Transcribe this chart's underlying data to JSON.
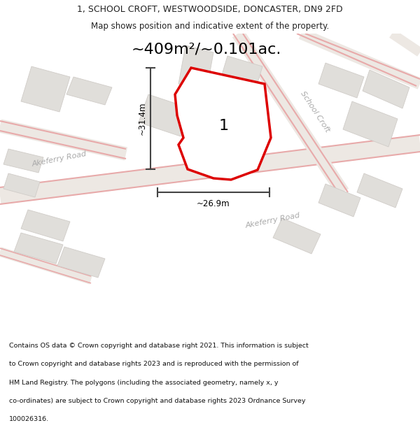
{
  "title_line1": "1, SCHOOL CROFT, WESTWOODSIDE, DONCASTER, DN9 2FD",
  "title_line2": "Map shows position and indicative extent of the property.",
  "area_text": "~409m²/~0.101ac.",
  "label_number": "1",
  "dim_height": "~31.4m",
  "dim_width": "~26.9m",
  "road_label_left": "Akeferry Road",
  "road_label_bottom": "Akeferry Road",
  "road_label_right": "School Croft",
  "footer_lines": [
    "Contains OS data © Crown copyright and database right 2021. This information is subject",
    "to Crown copyright and database rights 2023 and is reproduced with the permission of",
    "HM Land Registry. The polygons (including the associated geometry, namely x, y",
    "co-ordinates) are subject to Crown copyright and database rights 2023 Ordnance Survey",
    "100026316."
  ],
  "map_bg": "#f2f0ed",
  "plot_outline_color": "#dd0000",
  "plot_fill": "#f5f4f1",
  "dim_line_color": "#444444",
  "text_color": "#222222",
  "footer_color": "#111111",
  "road_text_color": "#aaaaaa",
  "building_fill": "#e0deda",
  "building_stroke": "#d0ccc8",
  "pink_road_color": "#e8aaaa",
  "pink_road_lw": 7,
  "pink_road_lw_thin": 1.0,
  "title_fontsize": 9,
  "subtitle_fontsize": 8.5,
  "area_fontsize": 16,
  "label_fontsize": 16,
  "dim_fontsize": 8.5,
  "road_fontsize": 8,
  "footer_fontsize": 6.8
}
